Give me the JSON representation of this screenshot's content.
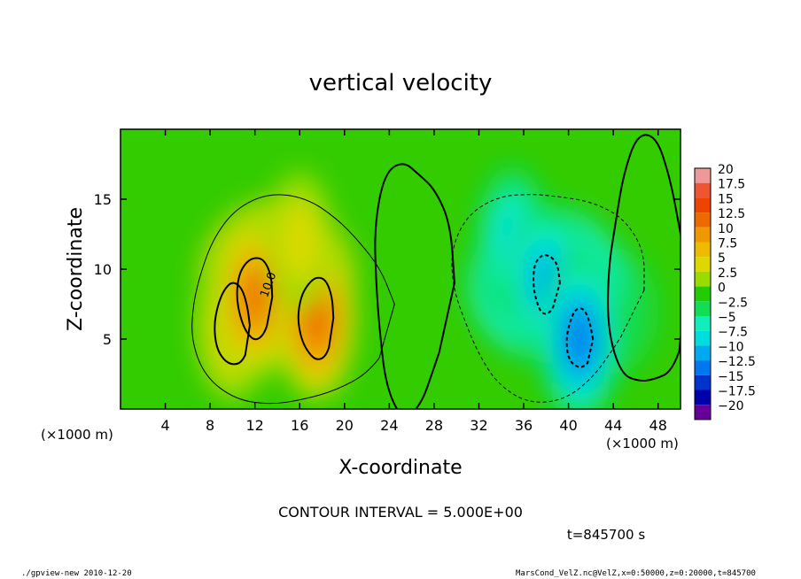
{
  "chart_data": {
    "type": "heatmap",
    "title": "vertical velocity",
    "xlabel": "X-coordinate",
    "ylabel": "Z-coordinate",
    "x_unit_left": "(×1000 m)",
    "x_unit_right": "(×1000 m)",
    "xlim": [
      0,
      50
    ],
    "ylim": [
      0,
      20
    ],
    "x_ticks": [
      4,
      8,
      12,
      16,
      20,
      24,
      28,
      32,
      36,
      40,
      44,
      48
    ],
    "y_ticks": [
      5,
      10,
      15
    ],
    "colorbar": {
      "levels": [
        20,
        17.5,
        15,
        12.5,
        10,
        7.5,
        5,
        2.5,
        0,
        -2.5,
        -5,
        -7.5,
        -10,
        -12.5,
        -15,
        -17.5,
        -20
      ],
      "level_labels": [
        "20",
        "17.5",
        "15",
        "12.5",
        "10",
        "7.5",
        "5",
        "2.5",
        "0",
        "−2.5",
        "−5",
        "−7.5",
        "−10",
        "−12.5",
        "−15",
        "−17.5",
        "−20"
      ],
      "colors": [
        "#ee9999",
        "#ee5533",
        "#ee4400",
        "#ee6a00",
        "#ee9900",
        "#eebb00",
        "#ddd800",
        "#99dd00",
        "#22cc00",
        "#11dd55",
        "#11eebb",
        "#00dddd",
        "#00aaee",
        "#0077ee",
        "#0033cc",
        "#0000aa",
        "#660099"
      ]
    },
    "updrafts": [
      {
        "x": 10,
        "z": 6,
        "w": 8.5
      },
      {
        "x": 12,
        "z": 8,
        "w": 13
      },
      {
        "x": 17.5,
        "z": 6.5,
        "w": 14
      },
      {
        "x": 16,
        "z": 12,
        "w": 6
      }
    ],
    "downdrafts": [
      {
        "x": 35,
        "z": 12,
        "w": -8
      },
      {
        "x": 38,
        "z": 9,
        "w": -11
      },
      {
        "x": 41,
        "z": 5,
        "w": -14
      }
    ],
    "contour_label": "10.0",
    "contour_interval_text": "CONTOUR INTERVAL = 5.000E+00",
    "time_text": "t=845700 s"
  },
  "footer": {
    "left": "./gpview-new  2010-12-20",
    "right": "MarsCond_VelZ.nc@VelZ,x=0:50000,z=0:20000,t=845700"
  }
}
